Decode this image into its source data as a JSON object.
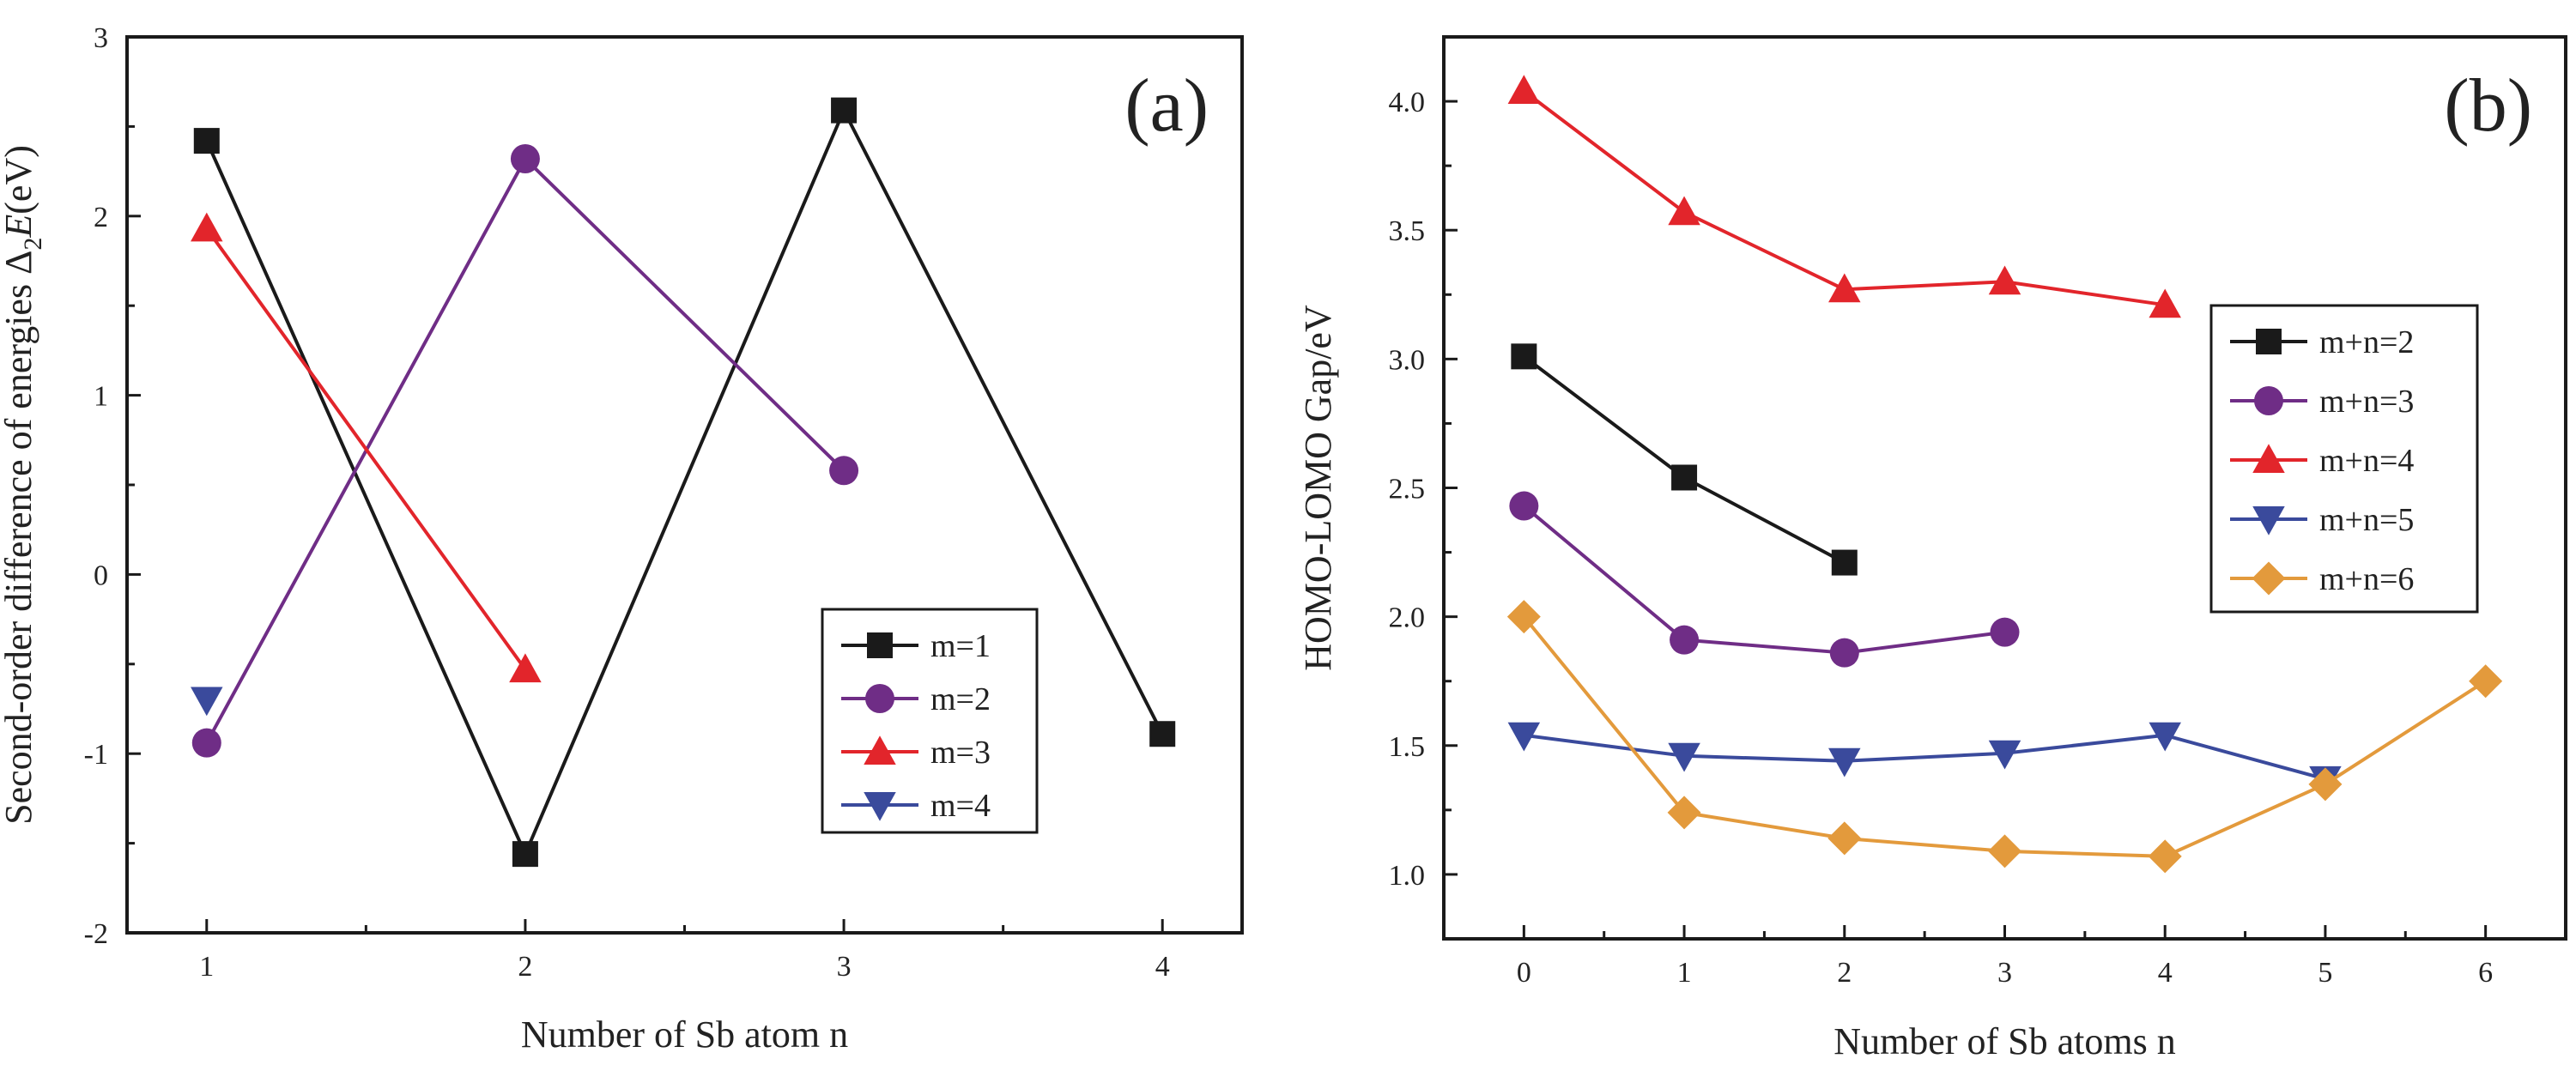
{
  "figure": {
    "panels": [
      {
        "label": "(a)"
      },
      {
        "label": "(b)"
      }
    ]
  },
  "chart_data": [
    {
      "type": "line",
      "panel": "(a)",
      "xlabel": "Number of Sb atom n",
      "ylabel_parts": [
        "Second-order difference of energies Δ",
        "2",
        "E",
        "(eV)"
      ],
      "xlim": [
        0.75,
        4.25
      ],
      "ylim": [
        -2,
        3
      ],
      "xticks": [
        1,
        2,
        3,
        4
      ],
      "yticks": [
        -2,
        -1,
        0,
        1,
        2,
        3
      ],
      "grid": false,
      "legend_position": "bottom-right",
      "series": [
        {
          "name": "m=1",
          "color": "#1a1a1a",
          "marker": "square",
          "x": [
            1,
            2,
            3,
            4
          ],
          "y": [
            2.42,
            -1.56,
            2.59,
            -0.89
          ]
        },
        {
          "name": "m=2",
          "color": "#6f2d86",
          "marker": "circle",
          "x": [
            1,
            2,
            3
          ],
          "y": [
            -0.94,
            2.32,
            0.58
          ]
        },
        {
          "name": "m=3",
          "color": "#e2252b",
          "marker": "triangle-up",
          "x": [
            1,
            2
          ],
          "y": [
            1.93,
            -0.53
          ]
        },
        {
          "name": "m=4",
          "color": "#3a4a9c",
          "marker": "triangle-down",
          "x": [
            1
          ],
          "y": [
            -0.7
          ]
        }
      ]
    },
    {
      "type": "line",
      "panel": "(b)",
      "xlabel": "Number of Sb atoms n",
      "ylabel_parts": [
        "HOMO-LOMO Gap/eV"
      ],
      "xlim": [
        -0.5,
        6.5
      ],
      "ylim": [
        0.75,
        4.25
      ],
      "xticks": [
        0,
        1,
        2,
        3,
        4,
        5,
        6
      ],
      "yticks": [
        1.0,
        1.5,
        2.0,
        2.5,
        3.0,
        3.5,
        4.0
      ],
      "ytick_decimals": 1,
      "grid": false,
      "legend_position": "top-right",
      "series": [
        {
          "name": "m+n=2",
          "color": "#1a1a1a",
          "marker": "square",
          "x": [
            0,
            1,
            2
          ],
          "y": [
            3.01,
            2.54,
            2.21
          ]
        },
        {
          "name": "m+n=3",
          "color": "#6f2d86",
          "marker": "circle",
          "x": [
            0,
            1,
            2,
            3
          ],
          "y": [
            2.43,
            1.91,
            1.86,
            1.94
          ]
        },
        {
          "name": "m+n=4",
          "color": "#e2252b",
          "marker": "triangle-up",
          "x": [
            0,
            1,
            2,
            3,
            4
          ],
          "y": [
            4.04,
            3.57,
            3.27,
            3.3,
            3.21
          ]
        },
        {
          "name": "m+n=5",
          "color": "#3a4a9c",
          "marker": "triangle-down",
          "x": [
            0,
            1,
            2,
            3,
            4,
            5
          ],
          "y": [
            1.54,
            1.46,
            1.44,
            1.47,
            1.54,
            1.37
          ]
        },
        {
          "name": "m+n=6",
          "color": "#e39a3c",
          "marker": "diamond",
          "x": [
            0,
            1,
            2,
            3,
            4,
            5,
            6
          ],
          "y": [
            2.0,
            1.24,
            1.14,
            1.09,
            1.07,
            1.35,
            1.75
          ]
        }
      ]
    }
  ]
}
